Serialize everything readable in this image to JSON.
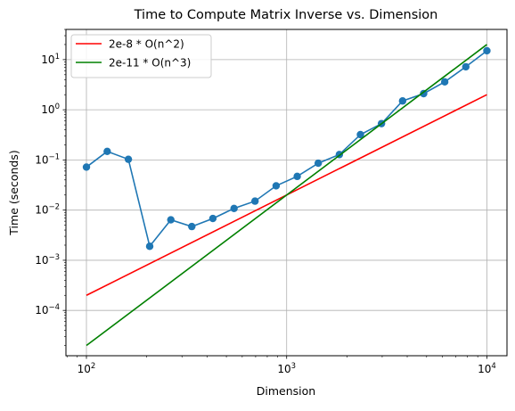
{
  "chart_data": {
    "type": "line",
    "title": "Time to Compute Matrix Inverse vs. Dimension",
    "xlabel": "Dimension",
    "ylabel": "Time (seconds)",
    "x_scale": "log",
    "y_scale": "log",
    "xlim": [
      79,
      12600
    ],
    "ylim": [
      1.25e-05,
      40
    ],
    "grid": true,
    "legend_position": "top-left",
    "x_ticks": [
      {
        "value": 100,
        "base": "10",
        "exp": "2"
      },
      {
        "value": 1000,
        "base": "10",
        "exp": "3"
      },
      {
        "value": 10000,
        "base": "10",
        "exp": "4"
      }
    ],
    "y_ticks": [
      {
        "value": 0.0001,
        "base": "10",
        "exp": "−4"
      },
      {
        "value": 0.001,
        "base": "10",
        "exp": "−3"
      },
      {
        "value": 0.01,
        "base": "10",
        "exp": "−2"
      },
      {
        "value": 0.1,
        "base": "10",
        "exp": "−1"
      },
      {
        "value": 1,
        "base": "10",
        "exp": "0"
      },
      {
        "value": 10,
        "base": "10",
        "exp": "1"
      }
    ],
    "series": [
      {
        "kind": "measured",
        "color": "#1f77b4",
        "marker": "circle",
        "x": [
          100,
          127,
          162,
          207,
          264,
          336,
          428,
          546,
          695,
          886,
          1129,
          1438,
          1833,
          2336,
          2976,
          3793,
          4833,
          6158,
          7848,
          10000
        ],
        "y": [
          0.072,
          0.148,
          0.103,
          0.0019,
          0.0064,
          0.0047,
          0.0068,
          0.0108,
          0.0151,
          0.0305,
          0.047,
          0.086,
          0.128,
          0.32,
          0.53,
          1.5,
          2.1,
          3.6,
          7.2,
          15.0
        ]
      },
      {
        "kind": "fit",
        "name": "2e-8 * O(n^2)",
        "color": "#ff0000",
        "x": [
          100,
          10000
        ],
        "y": [
          0.0002,
          2.0
        ]
      },
      {
        "kind": "fit",
        "name": "2e-11 * O(n^3)",
        "color": "#008000",
        "x": [
          100,
          10000
        ],
        "y": [
          2e-05,
          20.0
        ]
      }
    ]
  }
}
